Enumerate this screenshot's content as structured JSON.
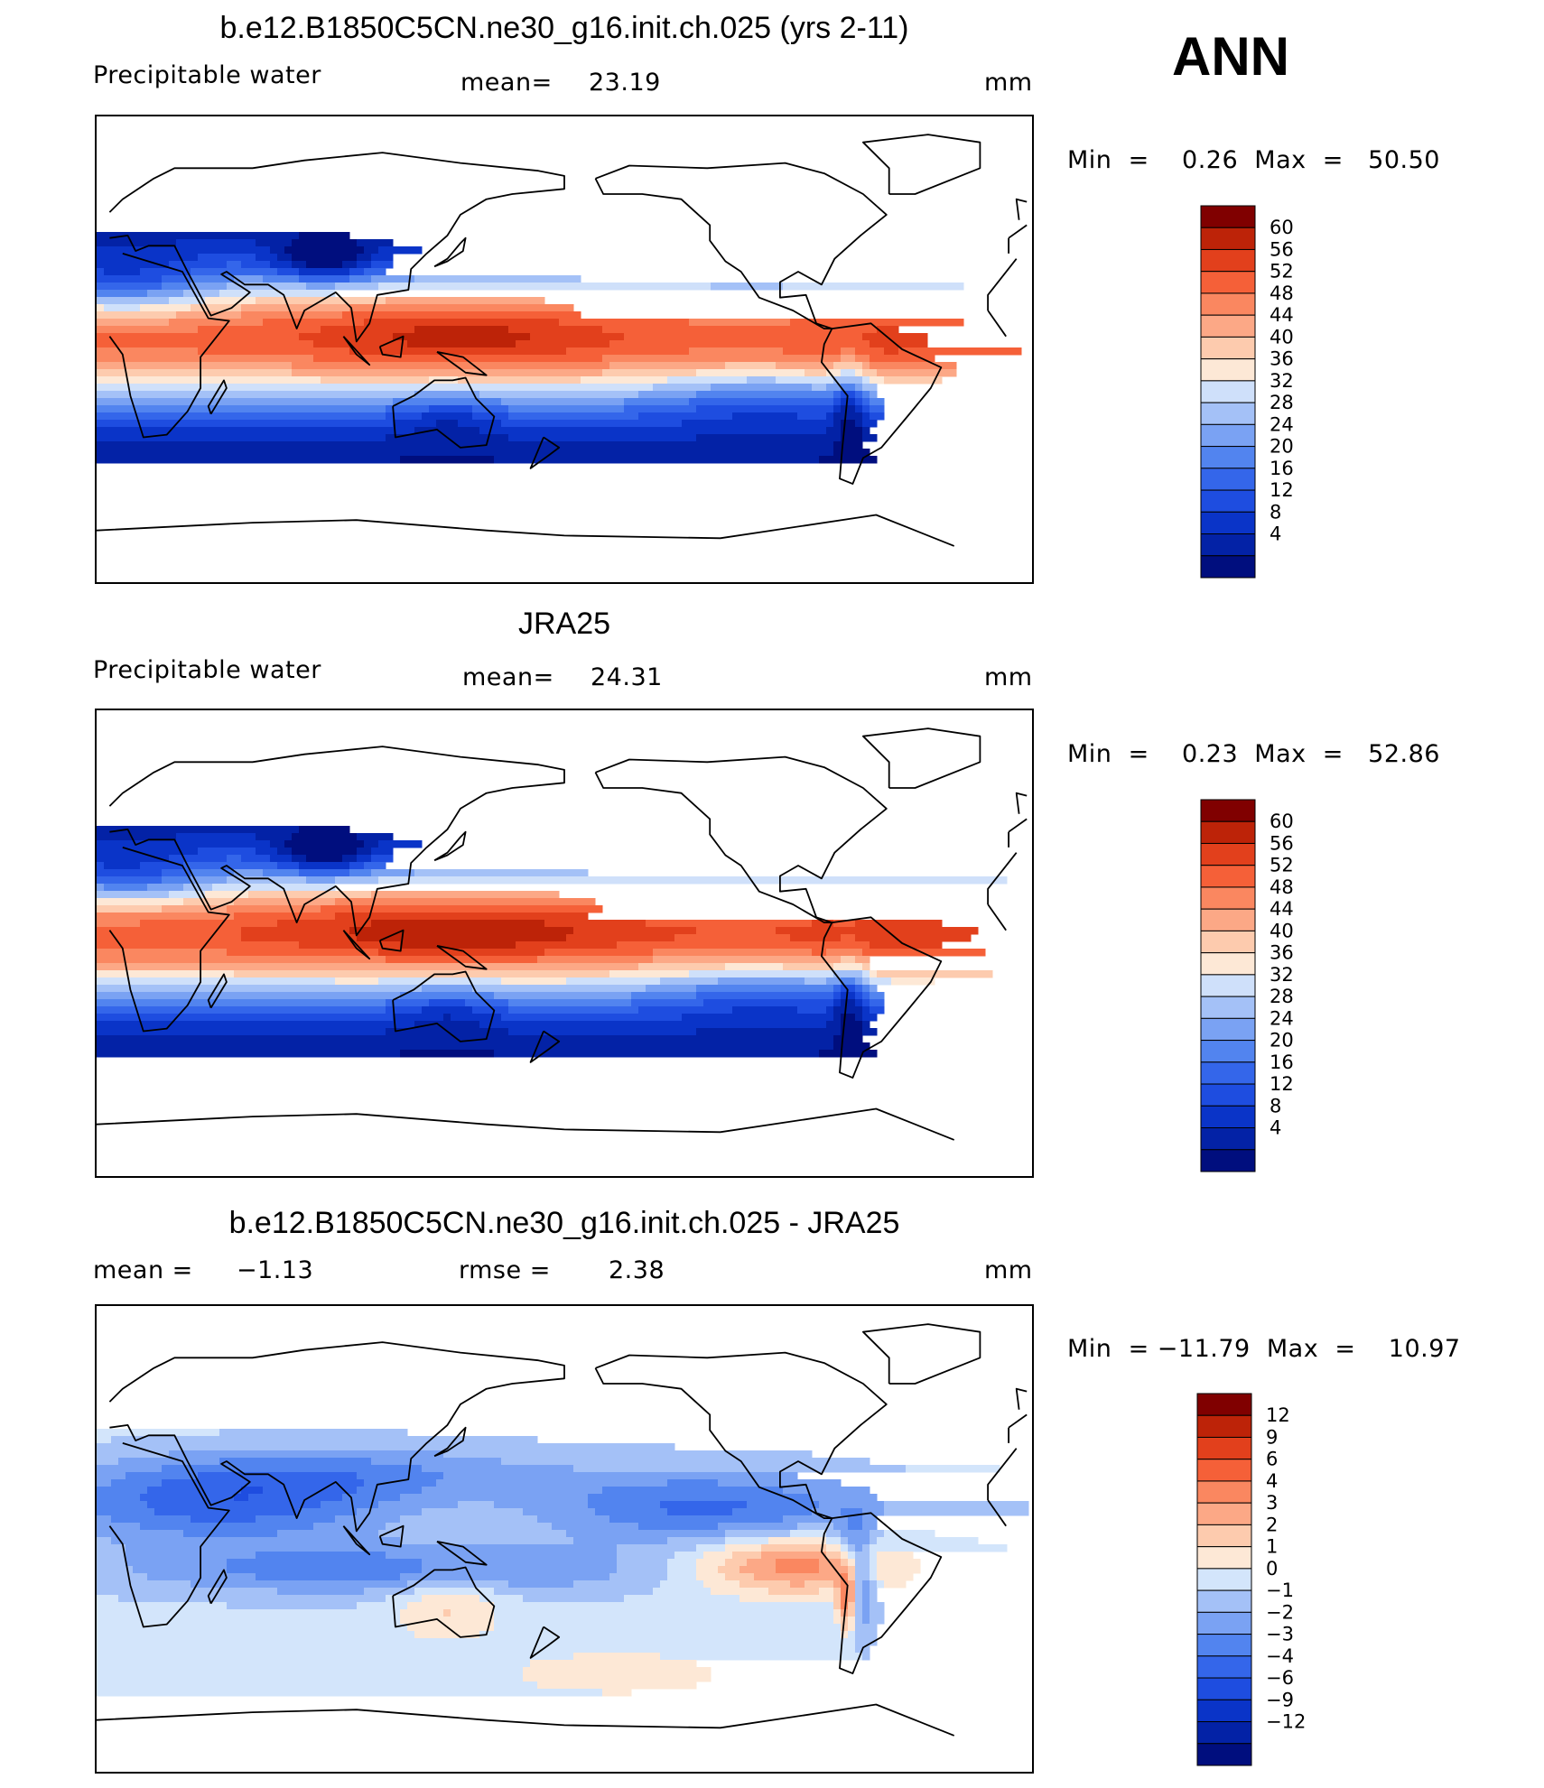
{
  "season": "ANN",
  "panels": [
    {
      "title": "b.e12.B1850C5CN.ne30_g16.init.ch.025 (yrs 2-11)",
      "variable": "Precipitable  water",
      "stat_label": "mean=",
      "stat_value": "23.19",
      "units": "mm",
      "minmax": "Min  =    0.26  Max  =   50.50",
      "colorbar_labels": [
        "60",
        "56",
        "52",
        "48",
        "44",
        "40",
        "36",
        "32",
        "28",
        "24",
        "20",
        "16",
        "12",
        "8",
        "4"
      ],
      "kind": "model"
    },
    {
      "title": "JRA25",
      "variable": "Precipitable  water",
      "stat_label": "mean=",
      "stat_value": "24.31",
      "units": "mm",
      "minmax": "Min  =    0.23  Max  =   52.86",
      "colorbar_labels": [
        "60",
        "56",
        "52",
        "48",
        "44",
        "40",
        "36",
        "32",
        "28",
        "24",
        "20",
        "16",
        "12",
        "8",
        "4"
      ],
      "kind": "obs"
    },
    {
      "title": "b.e12.B1850C5CN.ne30_g16.init.ch.025 - JRA25",
      "stat_label": "mean  =",
      "stat_value": "−1.13",
      "rmse_label": "rmse  =",
      "rmse_value": "2.38",
      "units": "mm",
      "minmax": "Min  = −11.79  Max  =    10.97",
      "colorbar_labels": [
        "12",
        "9",
        "6",
        "4",
        "3",
        "2",
        "1",
        "0",
        "−1",
        "−2",
        "−3",
        "−4",
        "−6",
        "−9",
        "−12"
      ],
      "kind": "diff"
    }
  ],
  "colors": {
    "abs_scale": [
      "#000e7e",
      "#0322a6",
      "#0a34c8",
      "#1e4de0",
      "#3466ea",
      "#5284ef",
      "#7aa2f3",
      "#a4c1f7",
      "#cfe0fa",
      "#fde8d6",
      "#fdcbae",
      "#fca886",
      "#fa8760",
      "#f56038",
      "#e2401c",
      "#bd2308",
      "#800000"
    ],
    "diff_scale": [
      "#000e7e",
      "#0322a6",
      "#0a34c8",
      "#1e4de0",
      "#3466ea",
      "#5284ef",
      "#7aa2f3",
      "#a4c1f7",
      "#d3e5fb",
      "#fde8d6",
      "#fdcbae",
      "#fca886",
      "#fa8760",
      "#f56038",
      "#e2401c",
      "#bd2308",
      "#800000"
    ]
  }
}
